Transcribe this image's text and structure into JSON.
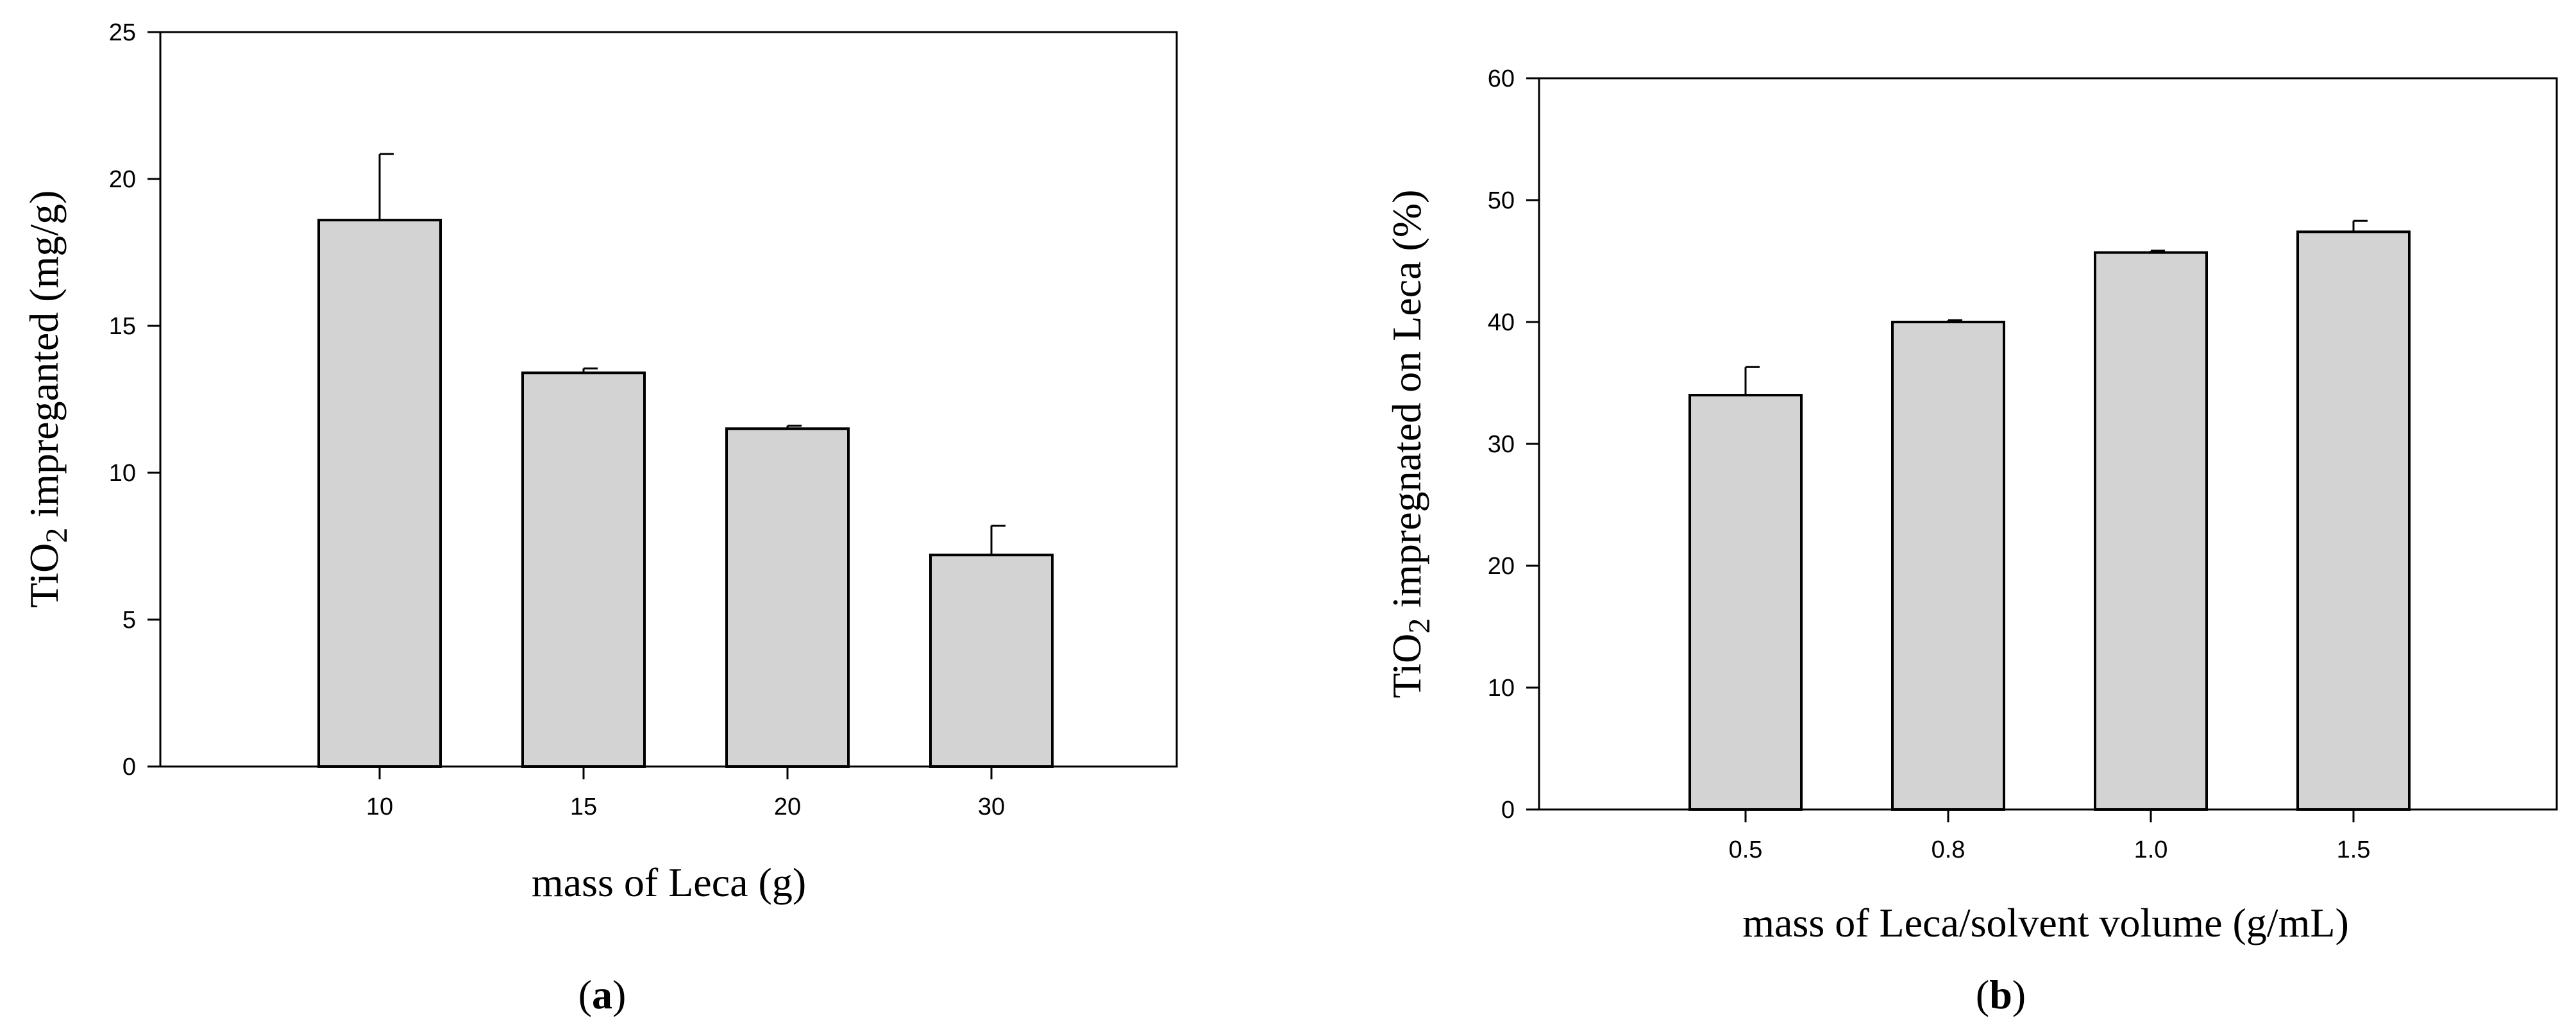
{
  "chart_data": [
    {
      "type": "bar",
      "panel_label": "a",
      "categories": [
        "10",
        "15",
        "20",
        "30"
      ],
      "values": [
        18.6,
        13.4,
        11.5,
        7.2
      ],
      "errors": [
        2.25,
        0.15,
        0.1,
        1.0
      ],
      "ylabel_prefix": "TiO",
      "ylabel_sub": "2",
      "ylabel_suffix": " impreganted (mg/g)",
      "xlabel": "mass of Leca (g)",
      "ylim": [
        0,
        25
      ],
      "yticks": [
        "0",
        "5",
        "10",
        "15",
        "20",
        "25"
      ],
      "bar_color": "#d3d3d3",
      "grid": false
    },
    {
      "type": "bar",
      "panel_label": "b",
      "categories": [
        "0.5",
        "0.8",
        "1.0",
        "1.5"
      ],
      "values": [
        34.0,
        40.0,
        45.7,
        47.4
      ],
      "errors": [
        2.3,
        0.15,
        0.15,
        0.9
      ],
      "ylabel_prefix": "TiO",
      "ylabel_sub": "2",
      "ylabel_suffix": " impregnated on Leca (%)",
      "xlabel": "mass of Leca/solvent volume (g/mL)",
      "ylim": [
        0,
        60
      ],
      "yticks": [
        "0",
        "10",
        "20",
        "30",
        "40",
        "50",
        "60"
      ],
      "bar_color": "#d3d3d3",
      "grid": false
    }
  ]
}
